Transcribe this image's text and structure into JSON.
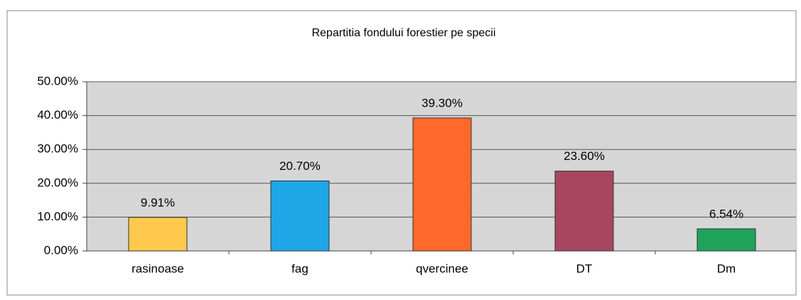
{
  "chart_data": {
    "type": "bar",
    "title": "Repartitia fondului forestier pe specii",
    "categories": [
      "rasinoase",
      "fag",
      "qvercinee",
      "DT",
      "Dm"
    ],
    "values": [
      9.91,
      20.7,
      39.3,
      23.6,
      6.54
    ],
    "value_labels": [
      "9.91%",
      "20.70%",
      "39.30%",
      "23.60%",
      "6.54%"
    ],
    "colors": [
      "#ffc94d",
      "#1ea7e6",
      "#ff6a2c",
      "#a8465f",
      "#20a35c"
    ],
    "ylim": [
      0,
      50
    ],
    "yticks": [
      {
        "value": 0,
        "label": "0.00%"
      },
      {
        "value": 10,
        "label": "10.00%"
      },
      {
        "value": 20,
        "label": "20.00%"
      },
      {
        "value": 30,
        "label": "30.00%"
      },
      {
        "value": 40,
        "label": "40.00%"
      },
      {
        "value": 50,
        "label": "50.00%"
      }
    ],
    "grid": true
  }
}
